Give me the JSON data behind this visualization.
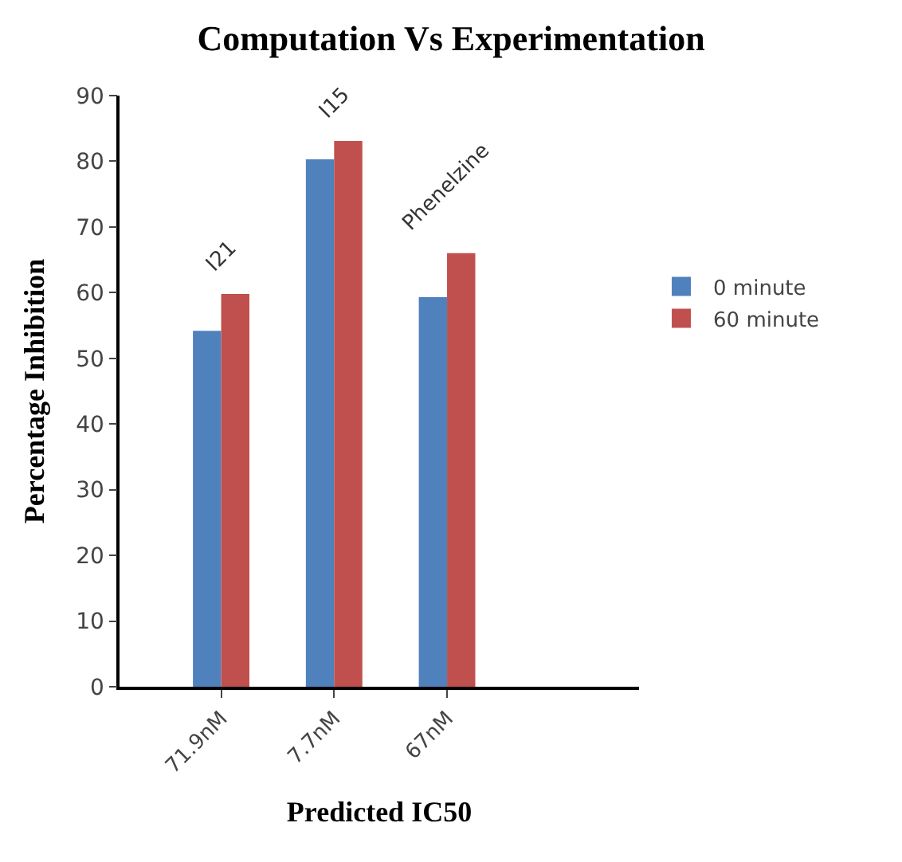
{
  "chart_data": {
    "type": "bar",
    "title": "Computation Vs Experimentation",
    "xlabel": "Predicted IC50",
    "ylabel": "Percentage Inhibition",
    "categories": [
      "71.9nM",
      "7.7nM",
      "67nM"
    ],
    "series": [
      {
        "name": "0 minute",
        "color": "#4f81bd",
        "values": [
          54.2,
          80.3,
          59.3
        ]
      },
      {
        "name": "60 minute",
        "color": "#c0504d",
        "values": [
          59.8,
          83.1,
          66.0
        ]
      }
    ],
    "annotations": [
      {
        "text": "I21",
        "x": "71.9nM",
        "y": 59.8
      },
      {
        "text": "I15",
        "x": "7.7nM",
        "y": 83.1
      },
      {
        "text": "Phenelzine",
        "x": "67nM",
        "y": 66.0
      }
    ],
    "ylim": [
      0,
      90
    ],
    "yticks": [
      0,
      10,
      20,
      30,
      40,
      50,
      60,
      70,
      80,
      90
    ],
    "legend": "right"
  }
}
